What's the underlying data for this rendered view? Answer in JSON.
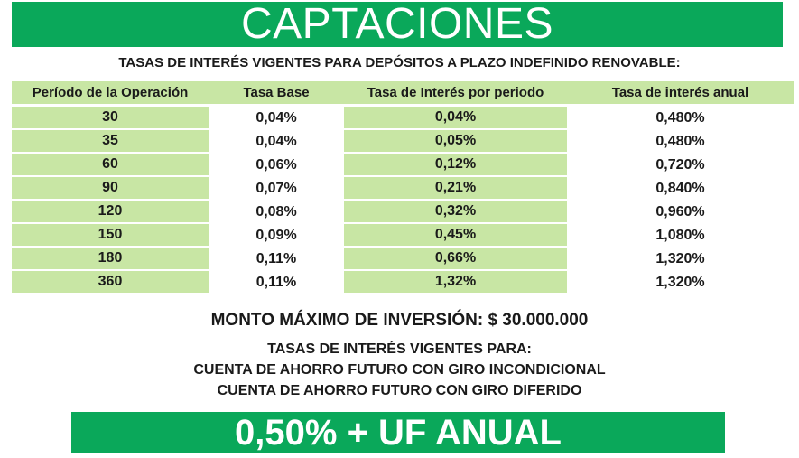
{
  "banner": {
    "title": "CAPTACIONES"
  },
  "subtitle": "TASAS DE INTERÉS VIGENTES PARA DEPÓSITOS A PLAZO INDEFINIDO RENOVABLE:",
  "table": {
    "headers": [
      "Período de la Operación",
      "Tasa Base",
      "Tasa  de Interés por periodo",
      "Tasa de interés anual"
    ],
    "rows": [
      {
        "period": "30",
        "base": "0,04%",
        "per_period": "0,04%",
        "annual": "0,480%"
      },
      {
        "period": "35",
        "base": "0,04%",
        "per_period": "0,05%",
        "annual": "0,480%"
      },
      {
        "period": "60",
        "base": "0,06%",
        "per_period": "0,12%",
        "annual": "0,720%"
      },
      {
        "period": "90",
        "base": "0,07%",
        "per_period": "0,21%",
        "annual": "0,840%"
      },
      {
        "period": "120",
        "base": "0,08%",
        "per_period": "0,32%",
        "annual": "0,960%"
      },
      {
        "period": "150",
        "base": "0,09%",
        "per_period": "0,45%",
        "annual": "1,080%"
      },
      {
        "period": "180",
        "base": "0,11%",
        "per_period": "0,66%",
        "annual": "1,320%"
      },
      {
        "period": "360",
        "base": "0,11%",
        "per_period": "1,32%",
        "annual": "1,320%"
      }
    ]
  },
  "monto": "MONTO MÁXIMO DE INVERSIÓN: $ 30.000.000",
  "tasas": {
    "line1": "TASAS DE INTERÉS VIGENTES PARA:",
    "line2": "CUENTA DE AHORRO FUTURO CON GIRO INCONDICIONAL",
    "line3": "CUENTA DE AHORRO FUTURO CON GIRO DIFERIDO"
  },
  "footer": {
    "rate": "0,50% + UF ANUAL"
  },
  "colors": {
    "banner_green": "#0aa85a",
    "light_green": "#c8e6a4"
  }
}
